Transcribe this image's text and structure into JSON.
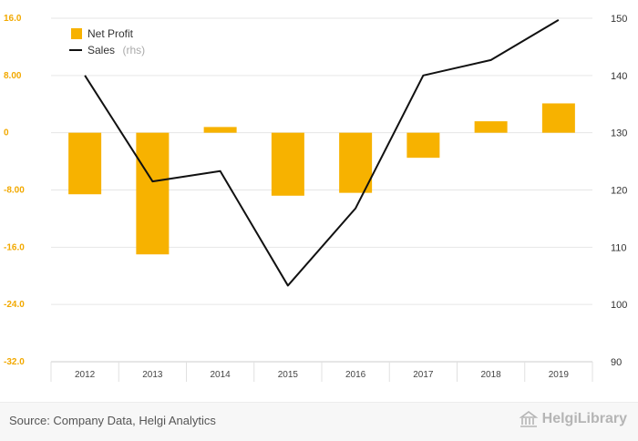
{
  "chart_data": {
    "type": "bar",
    "categories": [
      "2012",
      "2013",
      "2014",
      "2015",
      "2016",
      "2017",
      "2018",
      "2019"
    ],
    "series": [
      {
        "name": "Net Profit",
        "type": "bar",
        "axis": "left",
        "color": "#f7b200",
        "values": [
          -8.6,
          -17.0,
          0.8,
          -8.8,
          -8.4,
          -3.5,
          1.6,
          4.1
        ]
      },
      {
        "name": "Sales",
        "name_suffix": "(rhs)",
        "type": "line",
        "axis": "right",
        "color": "#111111",
        "values": [
          140,
          121.5,
          123.3,
          103.3,
          116.8,
          140,
          142.7,
          149.7
        ]
      }
    ],
    "y_left": {
      "ylim": [
        -32,
        16
      ],
      "ticks": [
        16,
        8,
        0,
        -8,
        -16,
        -24,
        -32
      ],
      "tick_labels": [
        "16.0",
        "8.00",
        "0",
        "-8.00",
        "-16.0",
        "-24.0",
        "-32.0"
      ]
    },
    "y_right": {
      "ylim": [
        90,
        150
      ],
      "ticks": [
        150,
        140,
        130,
        120,
        110,
        100,
        90
      ],
      "tick_labels": [
        "150",
        "140",
        "130",
        "120",
        "110",
        "100",
        "90"
      ]
    },
    "grid": true,
    "legend_position": "top-left"
  },
  "footer": {
    "source": "Source: Company Data, Helgi Analytics",
    "logo_text": "HelgiLibrary"
  }
}
